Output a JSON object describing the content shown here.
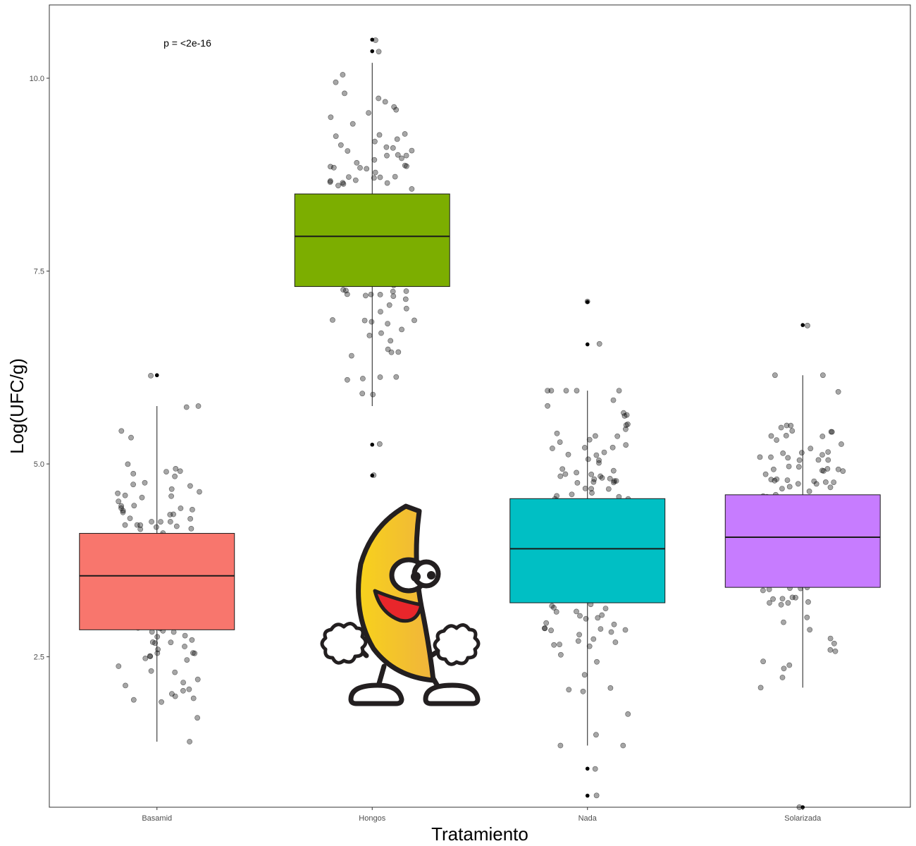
{
  "chart_data": {
    "type": "boxplot",
    "title": "",
    "xlabel": "Tratamiento",
    "ylabel": "Log(UFC/g)",
    "categories": [
      "Basamid",
      "Hongos",
      "Nada",
      "Solarizada"
    ],
    "ylim": [
      0.55,
      10.95
    ],
    "yticks": [
      2.5,
      5.0,
      7.5,
      10.0
    ],
    "ytick_labels": [
      "2.5",
      "5.0",
      "7.5",
      "10.0"
    ],
    "grid": false,
    "annotation": "p = <2e-16",
    "boxes": [
      {
        "name": "Basamid",
        "color": "#F8766D",
        "q1": 2.85,
        "median": 3.55,
        "q3": 4.1,
        "whisker_low": 1.4,
        "whisker_high": 5.75,
        "outliers": [
          6.15
        ]
      },
      {
        "name": "Hongos",
        "color": "#7CAE00",
        "q1": 7.3,
        "median": 7.95,
        "q3": 8.5,
        "whisker_low": 5.75,
        "whisker_high": 10.2,
        "outliers": [
          10.5,
          10.35,
          5.25,
          4.85
        ]
      },
      {
        "name": "Nada",
        "color": "#00BFC4",
        "q1": 3.2,
        "median": 3.9,
        "q3": 4.55,
        "whisker_low": 1.35,
        "whisker_high": 5.95,
        "outliers": [
          7.1,
          6.55,
          1.05,
          0.7
        ]
      },
      {
        "name": "Solarizada",
        "color": "#C77CFF",
        "q1": 3.4,
        "median": 4.05,
        "q3": 4.6,
        "whisker_low": 2.1,
        "whisker_high": 6.15,
        "outliers": [
          6.8,
          0.55
        ]
      }
    ],
    "jitter_points_per_group": 150,
    "overlay_image": "dancing-banana"
  }
}
